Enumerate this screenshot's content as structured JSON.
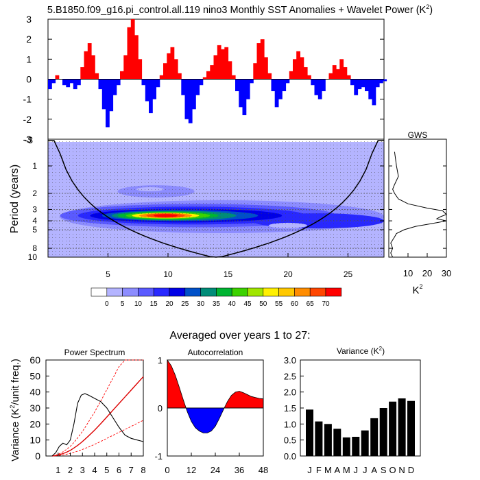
{
  "title": "5.B1850.f09_g16.pi_control.all.119 nino3 Monthly SST Anomalies + Wavelet Power (K",
  "title_sup": "2",
  "title_end": ")",
  "chart_data": [
    {
      "id": "sst-anomaly",
      "type": "area",
      "title": "",
      "ylim": [
        -3,
        3
      ],
      "yticks": [
        "3",
        "2",
        "1",
        "0",
        "-1",
        "-2",
        "-3"
      ],
      "xlim": [
        0,
        28
      ],
      "positive_color": "#ff0000",
      "negative_color": "#0000ff",
      "x": [
        0.0,
        0.3,
        0.6,
        0.9,
        1.2,
        1.5,
        1.8,
        2.1,
        2.4,
        2.7,
        3.0,
        3.3,
        3.6,
        3.9,
        4.2,
        4.5,
        4.8,
        5.1,
        5.4,
        5.7,
        6.0,
        6.3,
        6.6,
        6.9,
        7.2,
        7.5,
        7.8,
        8.1,
        8.4,
        8.7,
        9.0,
        9.3,
        9.6,
        9.9,
        10.2,
        10.5,
        10.8,
        11.1,
        11.4,
        11.7,
        12.0,
        12.3,
        12.6,
        12.9,
        13.2,
        13.5,
        13.8,
        14.1,
        14.4,
        14.7,
        15.0,
        15.3,
        15.6,
        15.9,
        16.2,
        16.5,
        16.8,
        17.1,
        17.4,
        17.7,
        18.0,
        18.3,
        18.6,
        18.9,
        19.2,
        19.5,
        19.8,
        20.1,
        20.4,
        20.7,
        21.0,
        21.3,
        21.6,
        21.9,
        22.2,
        22.5,
        22.8,
        23.1,
        23.4,
        23.7,
        24.0,
        24.3,
        24.6,
        24.9,
        25.2,
        25.5,
        25.8,
        26.1,
        26.4,
        26.7,
        27.0,
        27.3,
        27.6,
        27.9
      ],
      "values": [
        -0.5,
        -0.2,
        0.2,
        0.0,
        -0.3,
        -0.4,
        -0.2,
        -0.5,
        -0.3,
        0.6,
        1.4,
        1.8,
        1.2,
        0.3,
        -0.5,
        -1.5,
        -2.4,
        -1.6,
        -0.8,
        -0.3,
        0.4,
        1.2,
        2.6,
        3.0,
        2.2,
        1.0,
        -0.3,
        -1.1,
        -1.7,
        -1.0,
        -0.4,
        0.2,
        0.8,
        1.3,
        1.6,
        1.0,
        0.3,
        -0.8,
        -2.0,
        -2.2,
        -1.5,
        -0.8,
        -0.3,
        0.1,
        0.4,
        0.7,
        1.2,
        1.7,
        1.5,
        1.6,
        0.9,
        0.2,
        -0.6,
        -1.4,
        -1.8,
        -1.0,
        -0.2,
        0.8,
        1.8,
        2.0,
        1.1,
        0.3,
        -0.6,
        -1.4,
        -1.0,
        -0.6,
        -0.2,
        0.4,
        1.0,
        1.4,
        1.1,
        0.6,
        0.2,
        -0.3,
        -0.8,
        -1.0,
        -0.6,
        0.0,
        0.3,
        0.7,
        0.5,
        1.0,
        0.6,
        0.2,
        -0.3,
        -0.8,
        -0.5,
        -0.4,
        -0.6,
        -1.0,
        -1.3,
        -0.4,
        -0.2,
        -0.1
      ]
    },
    {
      "id": "wavelet-power",
      "type": "heatmap",
      "ylabel": "Period (years)",
      "yticks": [
        "1",
        "2",
        "3",
        "4",
        "5",
        "8",
        "10"
      ],
      "xticks": [
        "5",
        "10",
        "15",
        "20",
        "25"
      ],
      "xlim": [
        0,
        28
      ],
      "significant_periods": [
        2.0,
        3.0,
        4.0,
        5.0,
        8.0
      ],
      "cone_of_influence": "curve reaching period ~10 at year 14.5",
      "hotspots": [
        {
          "year": 10.0,
          "period": 3.5,
          "value": 70
        },
        {
          "year": 14.0,
          "period": 3.5,
          "value": 40
        },
        {
          "year": 18.5,
          "period": 3.7,
          "value": 30
        },
        {
          "year": 23.0,
          "period": 4.0,
          "value": 25
        },
        {
          "year": 9.0,
          "period": 2.0,
          "value": 10
        }
      ]
    },
    {
      "id": "global-wavelet-spectrum",
      "type": "line",
      "title": "GWS",
      "xlabel": "K",
      "xlabel_sup": "2",
      "xticks": [
        "10",
        "20",
        "30"
      ],
      "xlim": [
        0,
        30
      ],
      "periods": [
        0.7,
        1.0,
        1.3,
        1.6,
        1.8,
        2.0,
        2.3,
        2.6,
        2.9,
        3.1,
        3.4,
        3.6,
        3.8,
        4.0,
        4.3,
        4.6,
        5.0,
        5.5,
        6.0,
        7.0,
        8.0,
        9.0,
        10.5
      ],
      "values": [
        3,
        4,
        5,
        3,
        2,
        3,
        5,
        10,
        20,
        28,
        30,
        27,
        25,
        30,
        22,
        14,
        8,
        4,
        3,
        1,
        2,
        1,
        2
      ]
    },
    {
      "id": "colorbar",
      "type": "heatmap",
      "labels": [
        "0",
        "5",
        "10",
        "15",
        "20",
        "25",
        "30",
        "35",
        "40",
        "45",
        "50",
        "55",
        "60",
        "65",
        "70"
      ],
      "colors": [
        "#ffffff",
        "#b4b4ff",
        "#8c8cff",
        "#5a5aff",
        "#2828ff",
        "#0000e6",
        "#0050c8",
        "#008c78",
        "#00b432",
        "#3cd200",
        "#a0e600",
        "#fff000",
        "#ffc800",
        "#ff8c00",
        "#ff4600",
        "#ff0000"
      ]
    }
  ],
  "averaged_label": "Averaged over years 1 to 27:",
  "bottom_charts": [
    {
      "id": "power-spectrum",
      "type": "line",
      "title": "Power Spectrum",
      "ylabel_pre": "Variance (K",
      "ylabel_sup": "2",
      "ylabel_post": "/unit freq.)",
      "ylim": [
        0,
        60
      ],
      "xlim": [
        0,
        8
      ],
      "yticks": [
        "60",
        "50",
        "40",
        "30",
        "20",
        "10",
        "0"
      ],
      "xticks": [
        "1",
        "2",
        "3",
        "4",
        "5",
        "6",
        "7",
        "8"
      ],
      "x": [
        0.5,
        0.8,
        1.1,
        1.4,
        1.7,
        2.0,
        2.3,
        2.6,
        2.9,
        3.2,
        3.5,
        4.0,
        4.5,
        5.0,
        5.5,
        6.0,
        6.5,
        7.0,
        7.5,
        8.0
      ],
      "spectrum": [
        0,
        2,
        6,
        8,
        7,
        10,
        20,
        33,
        38,
        39,
        38,
        36,
        34,
        30,
        24,
        18,
        13,
        11,
        10,
        9
      ],
      "red_noise": [
        0,
        0.3,
        0.8,
        1.5,
        2.4,
        3.5,
        5,
        6.6,
        8.4,
        10.4,
        12.5,
        16.2,
        20.2,
        24.4,
        28.6,
        32.8,
        37,
        41.2,
        45.4,
        49.6
      ],
      "red_noise_hi": [
        0,
        0.5,
        1.4,
        2.6,
        4.2,
        6,
        8.5,
        11.3,
        14.3,
        17.7,
        21.3,
        27.5,
        34.3,
        41.5,
        48.6,
        55.8,
        62.9,
        70,
        77.2,
        84.3
      ],
      "red_noise_lo": [
        0,
        0.1,
        0.4,
        0.7,
        1.1,
        1.6,
        2.3,
        3,
        3.8,
        4.7,
        5.6,
        7.3,
        9.1,
        11,
        12.9,
        14.8,
        16.6,
        18.5,
        20.4,
        22.3
      ]
    },
    {
      "id": "autocorrelation",
      "type": "area",
      "title": "Autocorrelation",
      "ylim": [
        -1,
        1
      ],
      "xlim": [
        0,
        48
      ],
      "yticks": [
        "1",
        "0",
        "-1"
      ],
      "xticks": [
        "0",
        "12",
        "24",
        "36",
        "48"
      ],
      "x": [
        0,
        2,
        4,
        6,
        8,
        10,
        12,
        14,
        16,
        18,
        20,
        22,
        24,
        26,
        28,
        30,
        32,
        34,
        36,
        38,
        40,
        42,
        44,
        46,
        48
      ],
      "values": [
        1.0,
        0.88,
        0.68,
        0.43,
        0.17,
        -0.08,
        -0.28,
        -0.41,
        -0.48,
        -0.52,
        -0.52,
        -0.48,
        -0.38,
        -0.22,
        -0.04,
        0.13,
        0.26,
        0.33,
        0.35,
        0.32,
        0.28,
        0.24,
        0.22,
        0.2,
        0.19
      ]
    },
    {
      "id": "monthly-variance",
      "type": "bar",
      "title_pre": "Variance (K",
      "title_sup": "2",
      "title_post": ")",
      "ylim": [
        0,
        3
      ],
      "yticks": [
        "3.0",
        "2.5",
        "2.0",
        "1.5",
        "1.0",
        "0.5",
        "0.0"
      ],
      "categories": [
        "J",
        "F",
        "M",
        "A",
        "M",
        "J",
        "J",
        "A",
        "S",
        "O",
        "N",
        "D"
      ],
      "values": [
        1.45,
        1.08,
        1.0,
        0.85,
        0.58,
        0.6,
        0.8,
        1.18,
        1.5,
        1.7,
        1.8,
        1.72
      ]
    }
  ]
}
